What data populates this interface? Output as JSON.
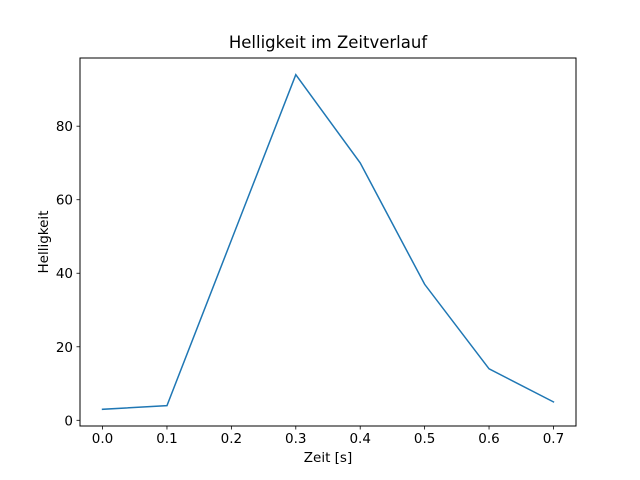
{
  "figure": {
    "background_color": "#ffffff",
    "spine_color": "#000000",
    "text_color": "#000000"
  },
  "chart_data": {
    "type": "line",
    "title": "Helligkeit im Zeitverlauf",
    "xlabel": "Zeit [s]",
    "ylabel": "Helligkeit",
    "x": [
      0.0,
      0.1,
      0.2,
      0.3,
      0.4,
      0.5,
      0.6,
      0.7
    ],
    "y": [
      3,
      4,
      49,
      94,
      70,
      37,
      14,
      5
    ],
    "series_name": "Helligkeit",
    "line_color": "#1f77b4",
    "line_width": 1.5,
    "x_ticks": [
      0.0,
      0.1,
      0.2,
      0.3,
      0.4,
      0.5,
      0.6,
      0.7
    ],
    "x_tick_labels": [
      "0.0",
      "0.1",
      "0.2",
      "0.3",
      "0.4",
      "0.5",
      "0.6",
      "0.7"
    ],
    "y_ticks": [
      0,
      20,
      40,
      60,
      80
    ],
    "y_tick_labels": [
      "0",
      "20",
      "40",
      "60",
      "80"
    ],
    "xlim": [
      -0.035,
      0.735
    ],
    "ylim": [
      -1.55,
      98.55
    ],
    "grid": false,
    "legend_position": "none"
  }
}
